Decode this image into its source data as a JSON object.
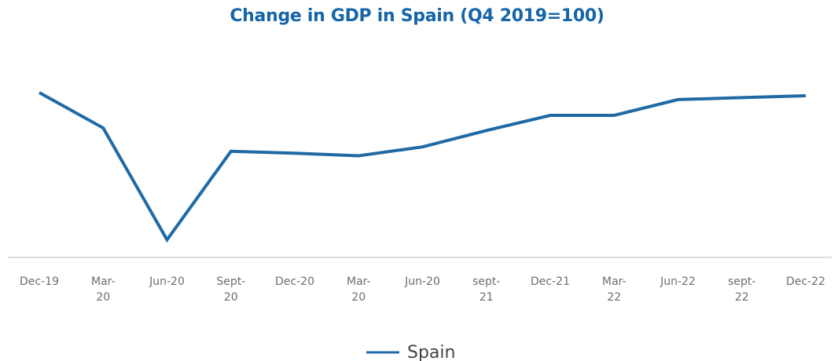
{
  "chart_data": {
    "type": "line",
    "title": "Change in GDP in Spain (Q4 2019=100)",
    "xlabel": "",
    "ylabel": "",
    "categories": [
      [
        "Dec-19"
      ],
      [
        "Mar-",
        "20"
      ],
      [
        "Jun-20"
      ],
      [
        "Sept-",
        "20"
      ],
      [
        "Dec-20"
      ],
      [
        "Mar-",
        "20"
      ],
      [
        "Jun-20"
      ],
      [
        "sept-",
        "21"
      ],
      [
        "Dec-21"
      ],
      [
        "Mar-",
        "22"
      ],
      [
        "Jun-22"
      ],
      [
        "sept-",
        "22"
      ],
      [
        "Dec-22"
      ]
    ],
    "series": [
      {
        "name": "Spain",
        "values": [
          100.0,
          94.4,
          76.7,
          90.7,
          90.4,
          90.0,
          91.4,
          94.0,
          96.4,
          96.4,
          98.9,
          99.2,
          99.5
        ]
      }
    ],
    "ylim": [
      73.9,
      100
    ],
    "grid": false,
    "legend": "bottom-center",
    "colors": {
      "title": "#1565a8",
      "series": "#1f6aa5",
      "axis": "#c8c8c8"
    }
  }
}
